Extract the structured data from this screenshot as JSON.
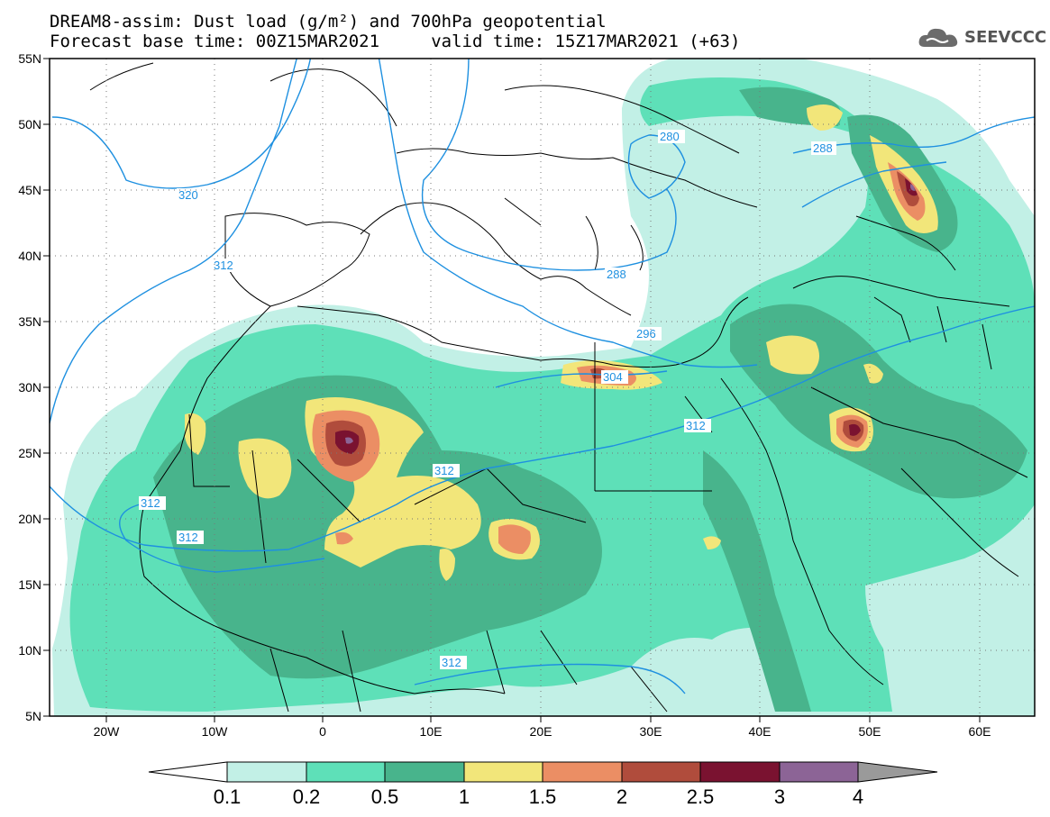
{
  "header": {
    "title_line1": "DREAM8-assim: Dust load (g/m²) and 700hPa geopotential",
    "title_line2": "Forecast base time: 00Z15MAR2021     valid time: 15Z17MAR2021 (+63)",
    "logo_text": "SEEVCCC"
  },
  "axes": {
    "lat_labels": [
      "55N",
      "50N",
      "45N",
      "40N",
      "35N",
      "30N",
      "25N",
      "20N",
      "15N",
      "10N",
      "5N"
    ],
    "lon_labels": [
      "20W",
      "10W",
      "0",
      "10E",
      "20E",
      "30E",
      "40E",
      "50E",
      "60E"
    ]
  },
  "colorbar": {
    "labels": [
      "0.1",
      "0.2",
      "0.5",
      "1",
      "1.5",
      "2",
      "2.5",
      "3",
      "4"
    ],
    "colors": [
      "#c2f0e6",
      "#5ee0b8",
      "#48b48c",
      "#f2e67a",
      "#eb8e64",
      "#b04c3c",
      "#7a1230",
      "#8c6496",
      "#9a9a9a"
    ]
  },
  "contours": [
    {
      "label": "320"
    },
    {
      "label": "312"
    },
    {
      "label": "280"
    },
    {
      "label": "288"
    },
    {
      "label": "288"
    },
    {
      "label": "296"
    },
    {
      "label": "304"
    },
    {
      "label": "312"
    },
    {
      "label": "312"
    },
    {
      "label": "312"
    },
    {
      "label": "312"
    },
    {
      "label": "312"
    }
  ],
  "colors": {
    "dust_0_1": "#c2f0e6",
    "dust_0_2": "#5ee0b8",
    "dust_0_5": "#48b48c",
    "dust_1": "#f2e67a",
    "dust_1_5": "#eb8e64",
    "dust_2": "#b04c3c",
    "dust_2_5": "#7a1230",
    "dust_3": "#8c6496",
    "contour": "#1e90e0"
  }
}
